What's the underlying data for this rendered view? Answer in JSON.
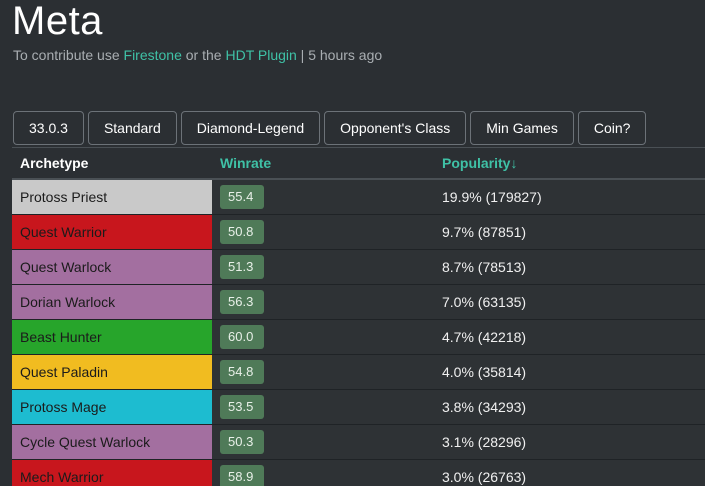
{
  "header": {
    "title": "Meta",
    "subtitle_prefix": "To contribute use ",
    "link_firestone": "Firestone",
    "subtitle_or": " or the ",
    "link_hdt": "HDT Plugin",
    "subtitle_suffix": " | 5 hours ago"
  },
  "filters": [
    {
      "label": "33.0.3"
    },
    {
      "label": "Standard"
    },
    {
      "label": "Diamond-Legend"
    },
    {
      "label": "Opponent's Class"
    },
    {
      "label": "Min Games"
    },
    {
      "label": "Coin?"
    }
  ],
  "table": {
    "headers": {
      "archetype": "Archetype",
      "winrate": "Winrate",
      "popularity": "Popularity↓"
    },
    "rows": [
      {
        "archetype": "Protoss Priest",
        "winrate": "55.4",
        "popularity": "19.9% (179827)",
        "color": "#c9c9c9",
        "text_color": "#1b1b1b"
      },
      {
        "archetype": "Quest Warrior",
        "winrate": "50.8",
        "popularity": "9.7% (87851)",
        "color": "#c8161d",
        "text_color": "#1b1b1b"
      },
      {
        "archetype": "Quest Warlock",
        "winrate": "51.3",
        "popularity": "8.7% (78513)",
        "color": "#a36fa0",
        "text_color": "#1b1b1b"
      },
      {
        "archetype": "Dorian Warlock",
        "winrate": "56.3",
        "popularity": "7.0% (63135)",
        "color": "#a36fa0",
        "text_color": "#1b1b1b"
      },
      {
        "archetype": "Beast Hunter",
        "winrate": "60.0",
        "popularity": "4.7% (42218)",
        "color": "#27a52b",
        "text_color": "#1b1b1b"
      },
      {
        "archetype": "Quest Paladin",
        "winrate": "54.8",
        "popularity": "4.0% (35814)",
        "color": "#f1bc20",
        "text_color": "#1b1b1b"
      },
      {
        "archetype": "Protoss Mage",
        "winrate": "53.5",
        "popularity": "3.8% (34293)",
        "color": "#1dbcd0",
        "text_color": "#1b1b1b"
      },
      {
        "archetype": "Cycle Quest Warlock",
        "winrate": "50.3",
        "popularity": "3.1% (28296)",
        "color": "#a36fa0",
        "text_color": "#1b1b1b"
      },
      {
        "archetype": "Mech Warrior",
        "winrate": "58.9",
        "popularity": "3.0% (26763)",
        "color": "#c8161d",
        "text_color": "#1b1b1b"
      }
    ]
  }
}
